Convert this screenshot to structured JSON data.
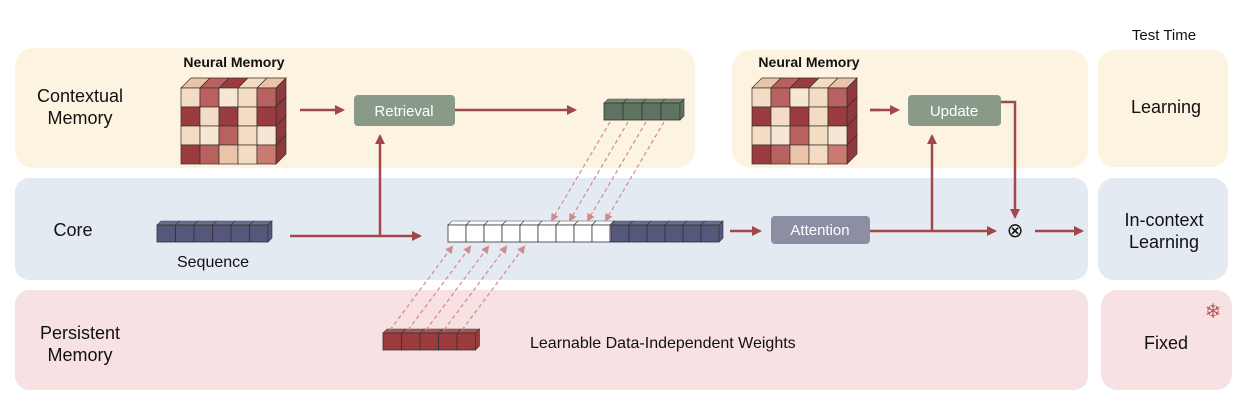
{
  "header": {
    "test_time": "Test Time"
  },
  "rows": {
    "contextual": {
      "label_line1": "Contextual",
      "label_line2": "Memory",
      "test_time": "Learning"
    },
    "core": {
      "label": "Core",
      "test_time_line1": "In-context",
      "test_time_line2": "Learning"
    },
    "persistent": {
      "label_line1": "Persistent",
      "label_line2": "Memory",
      "test_time": "Fixed",
      "test_time_icon": "snowflake-icon"
    }
  },
  "neural_memory_left": {
    "title": "Neural Memory"
  },
  "neural_memory_right": {
    "title": "Neural Memory"
  },
  "blocks": {
    "retrieval": "Retrieval",
    "update": "Update",
    "attention": "Attention",
    "multiply": "⊗"
  },
  "sequence_label": "Sequence",
  "weights_label": "Learnable Data-Independent Weights",
  "colors": {
    "contextual_bg": "#fcf4e1",
    "core_bg": "#e4eaf1",
    "persistent_bg": "#f8e1e2",
    "arrow": "#a2484b",
    "retrieval_box": "#8a9a88",
    "attention_box": "#8c8ea3",
    "retrieved_tokens": "#5e7360",
    "sequence_tokens": "#55587a",
    "persistent_tokens": "#9a3c3e"
  }
}
